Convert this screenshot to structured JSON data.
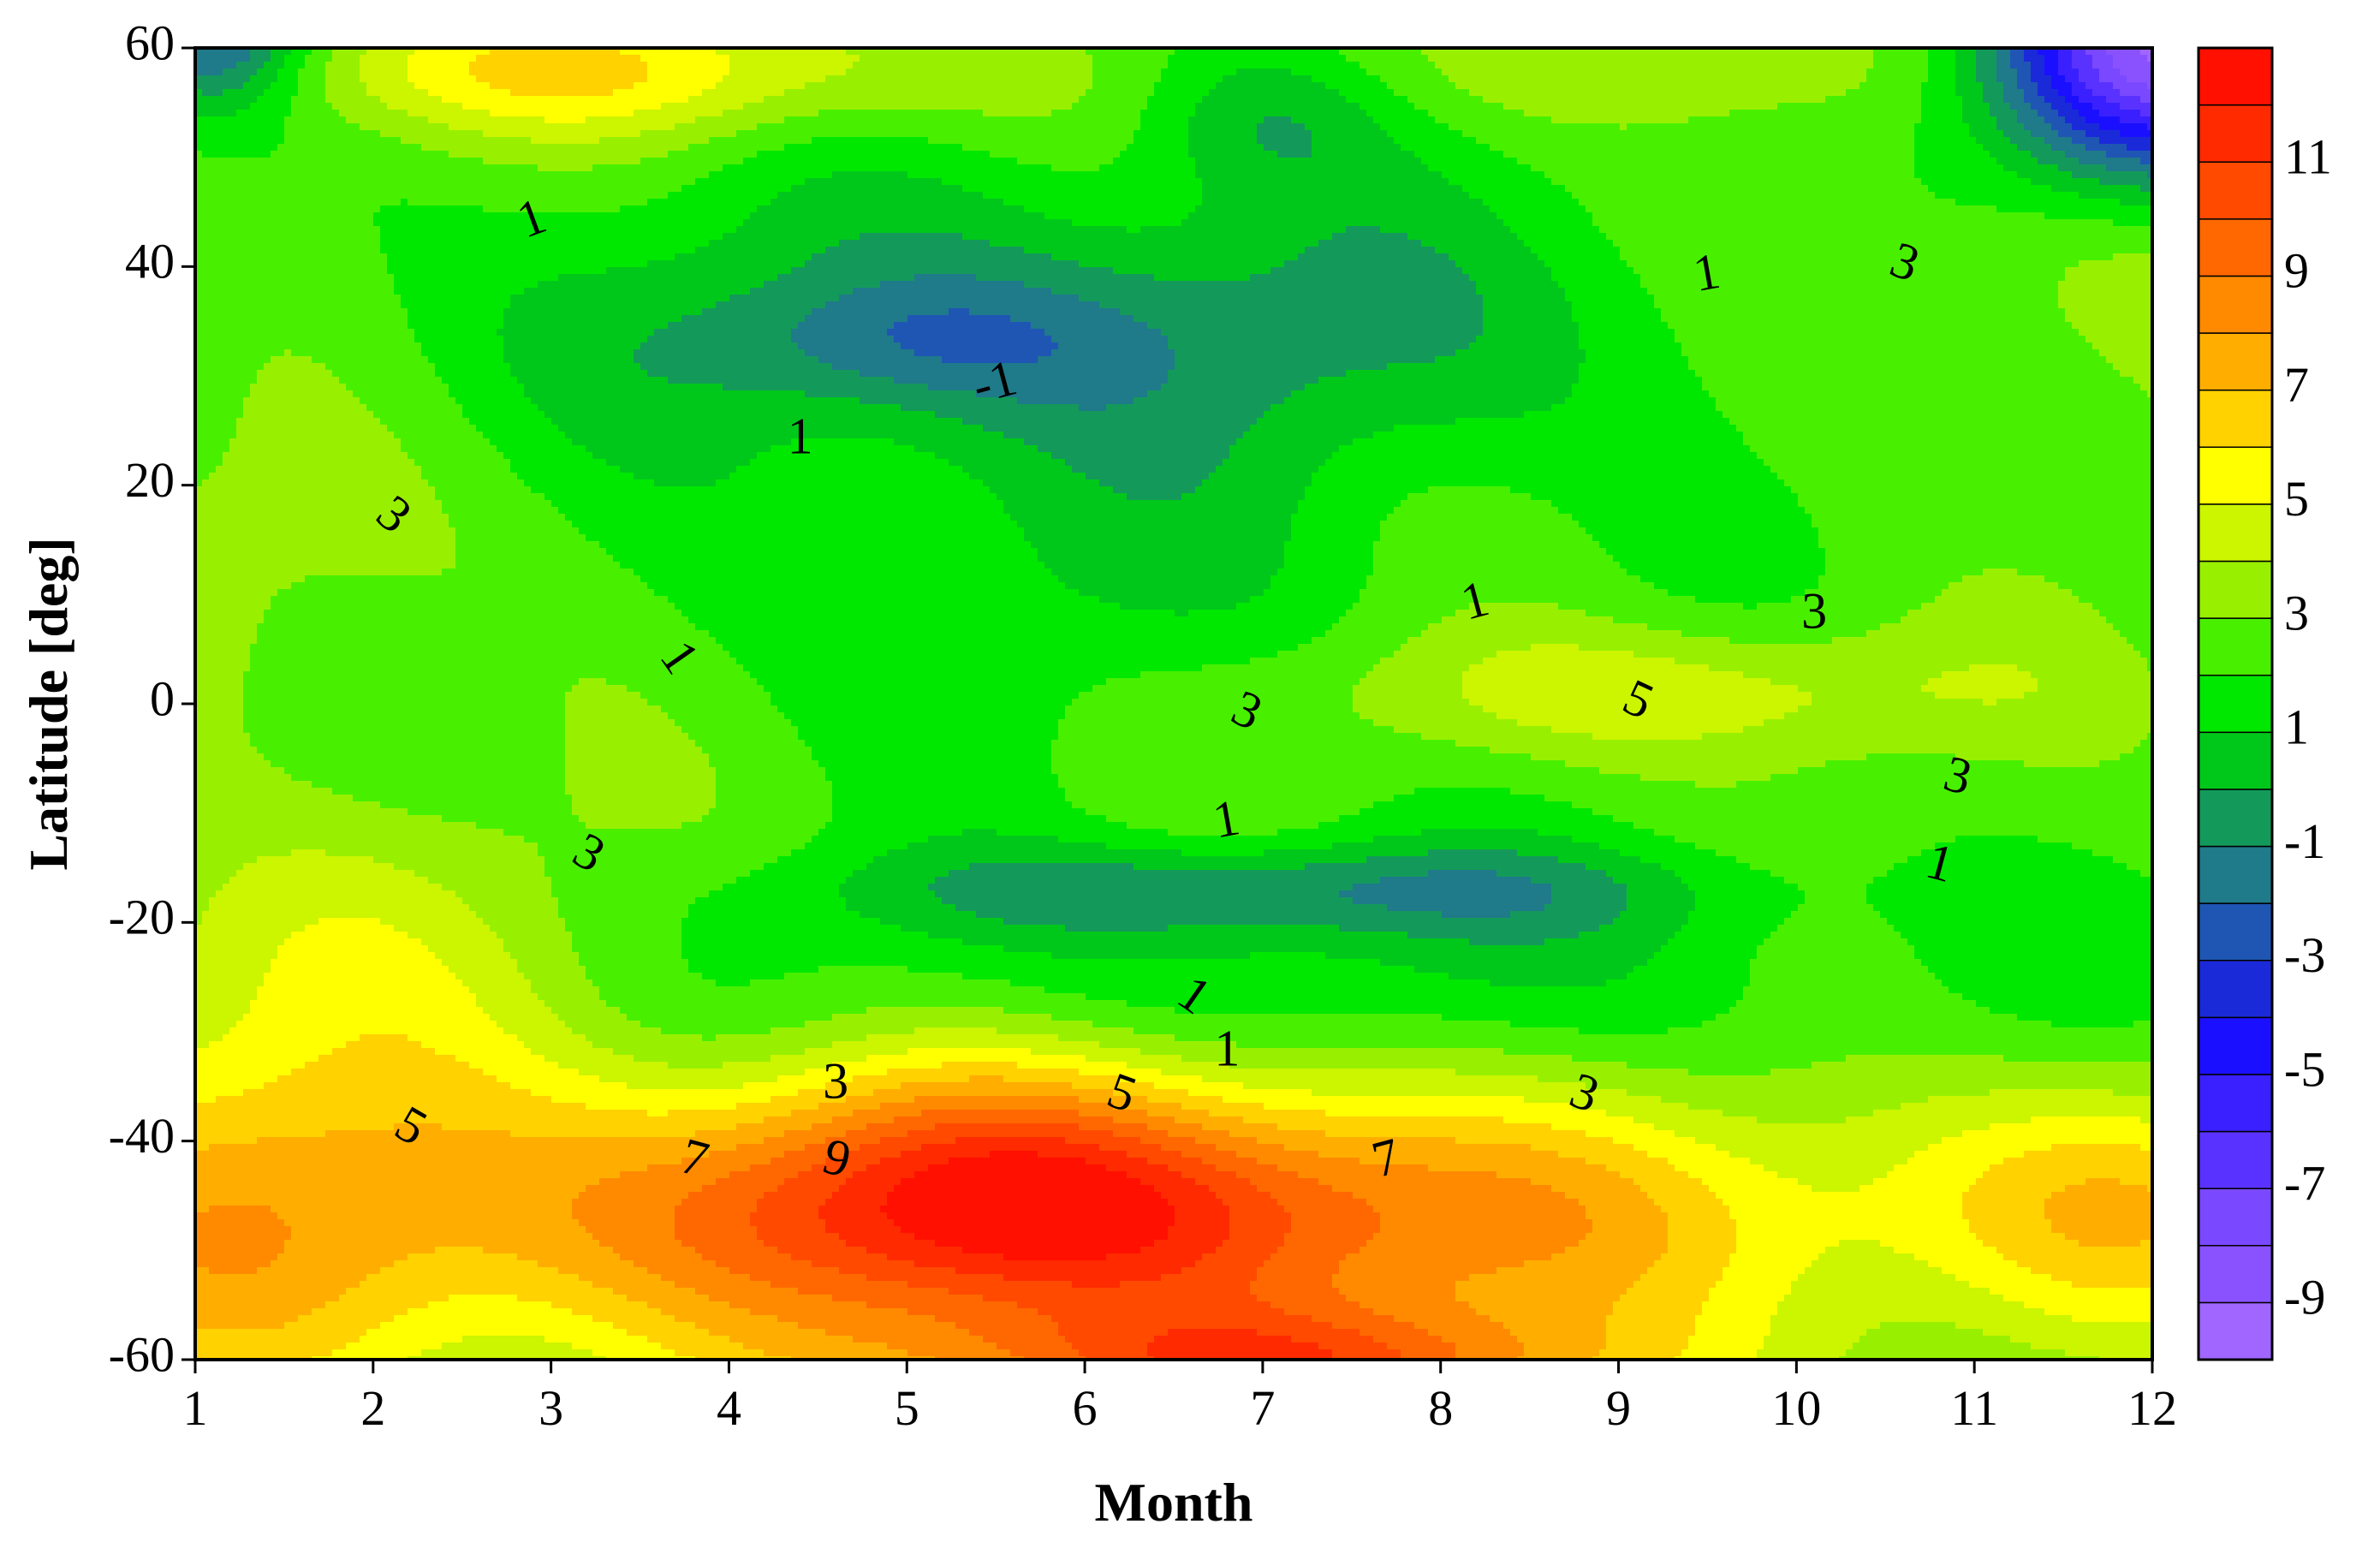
{
  "chart_data": {
    "type": "heatmap",
    "xlabel": "Month",
    "ylabel": "Latitude [deg]",
    "xlim": [
      1,
      12
    ],
    "ylim": [
      -60,
      60
    ],
    "x_ticks": [
      "1",
      "2",
      "3",
      "4",
      "5",
      "6",
      "7",
      "8",
      "9",
      "10",
      "11",
      "12"
    ],
    "y_ticks": [
      "-60",
      "-40",
      "-20",
      "0",
      "20",
      "40",
      "60"
    ],
    "colorbar": {
      "range": [
        -10,
        13
      ],
      "tick_labels": [
        "11",
        "9",
        "7",
        "5",
        "3",
        "1",
        "-1",
        "-3",
        "-5",
        "-7",
        "-9"
      ],
      "tick_values": [
        11,
        9,
        7,
        5,
        3,
        1,
        -1,
        -3,
        -5,
        -7,
        -9
      ],
      "levels": [
        -10,
        -9,
        -8,
        -7,
        -6,
        -5,
        -4,
        -3,
        -2,
        -1,
        0,
        1,
        2,
        3,
        4,
        5,
        6,
        7,
        8,
        9,
        10,
        11,
        12,
        13
      ],
      "colors": [
        "#a066ff",
        "#8a52ff",
        "#7a48ff",
        "#5a32ff",
        "#3a20ff",
        "#1a10ff",
        "#1a2ad8",
        "#1f56b4",
        "#1f7a8a",
        "#139a5a",
        "#00c81a",
        "#00e800",
        "#48f000",
        "#98f000",
        "#ccf500",
        "#ffff00",
        "#ffd200",
        "#ffae00",
        "#ff8a00",
        "#ff6800",
        "#ff4a00",
        "#ff2a00",
        "#ff1000"
      ]
    },
    "zero_contour_color": "#ffffff",
    "grid": false,
    "contour_labels": [
      {
        "text": "1",
        "x": 2.9,
        "y": 44,
        "rot": -20
      },
      {
        "text": "1",
        "x": 4.4,
        "y": 24,
        "rot": 0
      },
      {
        "text": "-1",
        "x": 5.5,
        "y": 29,
        "rot": -15
      },
      {
        "text": "1",
        "x": 9.5,
        "y": 39,
        "rot": -10
      },
      {
        "text": "3",
        "x": 10.6,
        "y": 40,
        "rot": 20
      },
      {
        "text": "3",
        "x": 2.1,
        "y": 17,
        "rot": 40
      },
      {
        "text": "1",
        "x": 8.2,
        "y": 9,
        "rot": -15
      },
      {
        "text": "3",
        "x": 10.1,
        "y": 8,
        "rot": 0
      },
      {
        "text": "1",
        "x": 3.7,
        "y": 4,
        "rot": 55
      },
      {
        "text": "3",
        "x": 6.9,
        "y": -1,
        "rot": 25
      },
      {
        "text": "5",
        "x": 9.1,
        "y": 0,
        "rot": 25
      },
      {
        "text": "3",
        "x": 10.9,
        "y": -7,
        "rot": 15
      },
      {
        "text": "1",
        "x": 6.8,
        "y": -11,
        "rot": -10
      },
      {
        "text": "1",
        "x": 10.8,
        "y": -15,
        "rot": 15
      },
      {
        "text": "3",
        "x": 3.2,
        "y": -14,
        "rot": 30
      },
      {
        "text": "1",
        "x": 6.6,
        "y": -27,
        "rot": 35
      },
      {
        "text": "1",
        "x": 6.8,
        "y": -32,
        "rot": 0
      },
      {
        "text": "3",
        "x": 4.6,
        "y": -35,
        "rot": 0
      },
      {
        "text": "5",
        "x": 6.2,
        "y": -36,
        "rot": 20
      },
      {
        "text": "3",
        "x": 8.8,
        "y": -36,
        "rot": 20
      },
      {
        "text": "5",
        "x": 2.2,
        "y": -39,
        "rot": 30
      },
      {
        "text": "7",
        "x": 3.8,
        "y": -42,
        "rot": 15
      },
      {
        "text": "9",
        "x": 4.6,
        "y": -42,
        "rot": 15
      },
      {
        "text": "7",
        "x": 7.7,
        "y": -42,
        "rot": -15
      }
    ]
  }
}
